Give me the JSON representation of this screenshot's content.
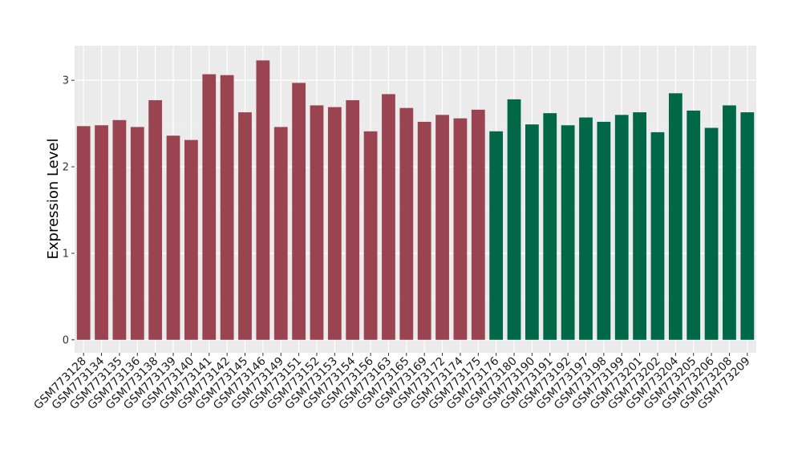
{
  "chart_data": {
    "type": "bar",
    "title": "",
    "xlabel": "",
    "ylabel": "Expression Level",
    "ylim": [
      -0.15,
      3.4
    ],
    "yticks": [
      0,
      1,
      2,
      3
    ],
    "grid": true,
    "panel_background": "#EBEBEB",
    "categories": [
      "GSM773128",
      "GSM773134",
      "GSM773135",
      "GSM773136",
      "GSM773138",
      "GSM773139",
      "GSM773140",
      "GSM773141",
      "GSM773142",
      "GSM773145",
      "GSM773146",
      "GSM773149",
      "GSM773151",
      "GSM773152",
      "GSM773153",
      "GSM773154",
      "GSM773156",
      "GSM773163",
      "GSM773165",
      "GSM773169",
      "GSM773172",
      "GSM773174",
      "GSM773175",
      "GSM773176",
      "GSM773180",
      "GSM773190",
      "GSM773191",
      "GSM773192",
      "GSM773197",
      "GSM773198",
      "GSM773199",
      "GSM773201",
      "GSM773202",
      "GSM773204",
      "GSM773205",
      "GSM773206",
      "GSM773208",
      "GSM773209"
    ],
    "values": [
      2.47,
      2.48,
      2.54,
      2.46,
      2.77,
      2.36,
      2.31,
      3.07,
      3.06,
      2.63,
      3.23,
      2.46,
      2.97,
      2.71,
      2.69,
      2.77,
      2.41,
      2.84,
      2.68,
      2.52,
      2.6,
      2.56,
      2.66,
      2.41,
      2.78,
      2.49,
      2.62,
      2.48,
      2.57,
      2.52,
      2.6,
      2.63,
      2.4,
      2.85,
      2.65,
      2.45,
      2.71,
      2.63
    ],
    "groups": [
      "A",
      "A",
      "A",
      "A",
      "A",
      "A",
      "A",
      "A",
      "A",
      "A",
      "A",
      "A",
      "A",
      "A",
      "A",
      "A",
      "A",
      "A",
      "A",
      "A",
      "A",
      "A",
      "A",
      "B",
      "B",
      "B",
      "B",
      "B",
      "B",
      "B",
      "B",
      "B",
      "B",
      "B",
      "B",
      "B",
      "B",
      "B"
    ],
    "group_colors": {
      "A": "#9B4451",
      "B": "#006847"
    }
  }
}
